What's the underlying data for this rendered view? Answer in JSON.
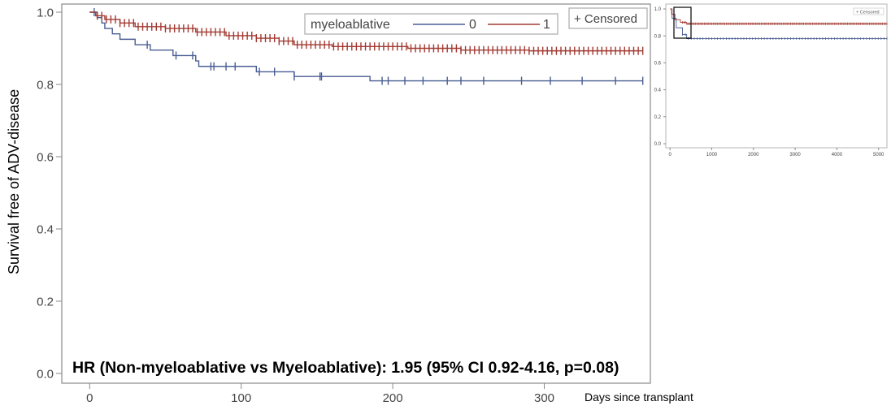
{
  "chart_data": [
    {
      "type": "line",
      "subtype": "kaplan-meier",
      "ylabel": "Survival free of ADV-disease",
      "xlabel": "Days since transplant",
      "xlim": [
        -20,
        370
      ],
      "ylim": [
        0.0,
        1.0
      ],
      "xticks": [
        "0",
        "100",
        "200",
        "300"
      ],
      "yticks": [
        "0.0",
        "0.2",
        "0.4",
        "0.6",
        "0.8",
        "1.0"
      ],
      "legend": {
        "title": "myeloablative",
        "position": "top-center",
        "censored_label": "+ Censored"
      },
      "annotation": "HR (Non-myeloablative vs Myeloablative): 1.95 (95% CI 0.92-4.16, p=0.08)",
      "grid": false,
      "series": [
        {
          "name": "0",
          "color": "#4a5e94",
          "steps": [
            [
              0,
              1.0
            ],
            [
              5,
              0.985
            ],
            [
              8,
              0.97
            ],
            [
              10,
              0.955
            ],
            [
              15,
              0.94
            ],
            [
              20,
              0.925
            ],
            [
              30,
              0.91
            ],
            [
              40,
              0.895
            ],
            [
              55,
              0.88
            ],
            [
              70,
              0.865
            ],
            [
              72,
              0.85
            ],
            [
              110,
              0.835
            ],
            [
              135,
              0.822
            ],
            [
              185,
              0.81
            ],
            [
              365,
              0.81
            ]
          ],
          "censored": [
            3,
            38,
            57,
            68,
            80,
            82,
            90,
            96,
            112,
            122,
            135,
            152,
            153,
            193,
            197,
            208,
            220,
            236,
            245,
            260,
            285,
            304,
            325,
            347,
            365
          ]
        },
        {
          "name": "1",
          "color": "#a23a32",
          "steps": [
            [
              0,
              1.0
            ],
            [
              4,
              0.99
            ],
            [
              10,
              0.98
            ],
            [
              20,
              0.97
            ],
            [
              30,
              0.96
            ],
            [
              50,
              0.955
            ],
            [
              70,
              0.945
            ],
            [
              90,
              0.935
            ],
            [
              110,
              0.928
            ],
            [
              125,
              0.92
            ],
            [
              135,
              0.91
            ],
            [
              160,
              0.905
            ],
            [
              210,
              0.9
            ],
            [
              245,
              0.895
            ],
            [
              290,
              0.893
            ],
            [
              365,
              0.893
            ]
          ],
          "censored": [
            5,
            8,
            11,
            14,
            17,
            20,
            23,
            26,
            29,
            32,
            35,
            38,
            41,
            44,
            47,
            50,
            53,
            56,
            59,
            62,
            65,
            68,
            71,
            74,
            77,
            80,
            83,
            86,
            89,
            92,
            95,
            98,
            101,
            104,
            107,
            110,
            113,
            116,
            119,
            122,
            125,
            128,
            131,
            134,
            137,
            140,
            143,
            146,
            149,
            152,
            155,
            158,
            161,
            164,
            167,
            170,
            173,
            176,
            179,
            182,
            185,
            188,
            191,
            194,
            197,
            200,
            203,
            206,
            209,
            212,
            215,
            218,
            221,
            224,
            227,
            230,
            233,
            236,
            239,
            242,
            245,
            248,
            251,
            254,
            257,
            260,
            263,
            266,
            269,
            272,
            275,
            278,
            281,
            284,
            287,
            290,
            293,
            296,
            299,
            302,
            305,
            308,
            311,
            314,
            317,
            320,
            323,
            326,
            329,
            332,
            335,
            338,
            341,
            344,
            347,
            350,
            353,
            356,
            359,
            362,
            365
          ]
        }
      ]
    },
    {
      "type": "line",
      "subtype": "kaplan-meier-inset",
      "xlim": [
        -100,
        5200
      ],
      "ylim": [
        0.0,
        1.0
      ],
      "xticks": [
        "0",
        "1000",
        "2000",
        "3000",
        "4000",
        "5000"
      ],
      "yticks": [
        "0.0",
        "0.2",
        "0.4",
        "0.6",
        "0.8",
        "1.0"
      ],
      "legend": {
        "censored_label": "+ Censored",
        "position": "top-right"
      },
      "series": [
        {
          "name": "0",
          "color": "#4a5e94",
          "steps": [
            [
              0,
              1.0
            ],
            [
              50,
              0.93
            ],
            [
              150,
              0.86
            ],
            [
              300,
              0.81
            ],
            [
              400,
              0.78
            ],
            [
              5200,
              0.78
            ]
          ]
        },
        {
          "name": "1",
          "color": "#a23a32",
          "steps": [
            [
              0,
              1.0
            ],
            [
              40,
              0.96
            ],
            [
              120,
              0.92
            ],
            [
              250,
              0.9
            ],
            [
              400,
              0.89
            ],
            [
              5200,
              0.89
            ]
          ]
        }
      ]
    }
  ]
}
